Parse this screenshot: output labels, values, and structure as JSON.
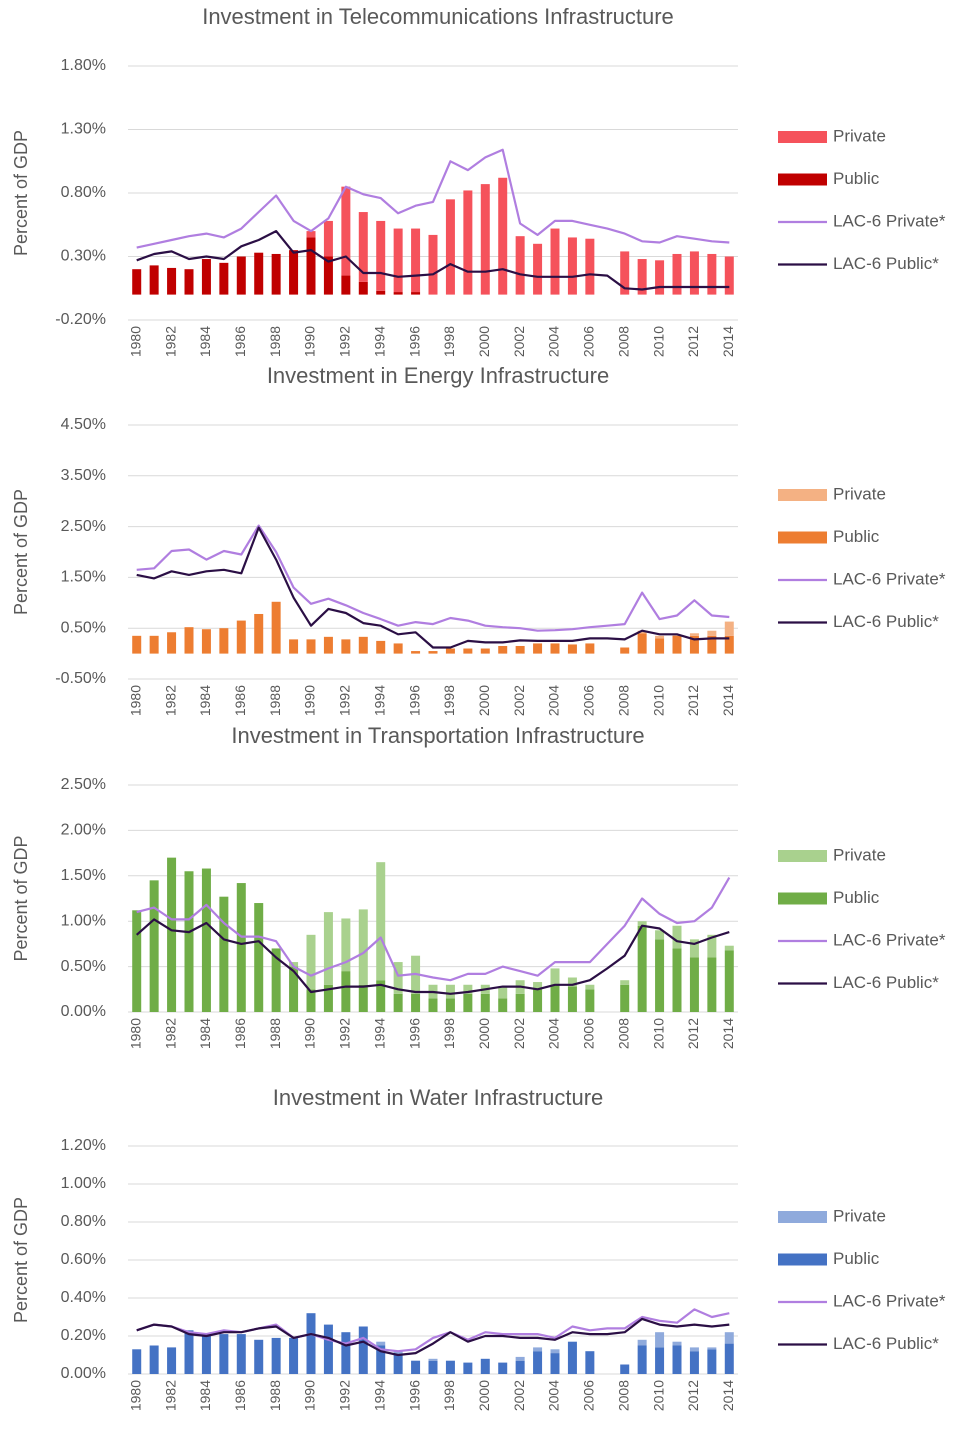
{
  "chart_data": [
    {
      "type": "bar",
      "title": "Investment in Telecommunications Infrastructure",
      "y_label": "Percent of GDP",
      "categories": [
        "1980",
        null,
        "1982",
        null,
        "1984",
        null,
        "1986",
        null,
        "1988",
        null,
        "1990",
        null,
        "1992",
        null,
        "1994",
        null,
        "1996",
        null,
        "1998",
        null,
        "2000",
        null,
        "2002",
        null,
        "2004",
        null,
        "2006",
        null,
        "2008",
        null,
        "2010",
        null,
        "2012",
        null,
        "2014"
      ],
      "ylim": [
        -0.2,
        1.8
      ],
      "yticks": [
        {
          "value": -0.2,
          "label": "-0.20%"
        },
        {
          "value": 0.3,
          "label": "0.30%"
        },
        {
          "value": 0.8,
          "label": "0.80%"
        },
        {
          "value": 1.3,
          "label": "1.30%"
        },
        {
          "value": 1.8,
          "label": "1.80%"
        }
      ],
      "grid": true,
      "series": [
        {
          "name": "Private",
          "type": "bar",
          "color": "#f5525b",
          "values": [
            0,
            0,
            0,
            0,
            0,
            0,
            0,
            0,
            0,
            0,
            0.05,
            0.28,
            0.7,
            0.55,
            0.55,
            0.5,
            0.5,
            0.47,
            0.75,
            0.82,
            0.87,
            0.92,
            0.46,
            0.4,
            0.52,
            0.45,
            0.44,
            0,
            0.34,
            0.28,
            0.27,
            0.32,
            0.34,
            0.32,
            0.3
          ]
        },
        {
          "name": "Public",
          "type": "bar",
          "color": "#c00000",
          "values": [
            0.2,
            0.23,
            0.21,
            0.2,
            0.28,
            0.25,
            0.3,
            0.33,
            0.32,
            0.35,
            0.45,
            0.3,
            0.15,
            0.1,
            0.03,
            0.02,
            0.02,
            0,
            0,
            0,
            0,
            0,
            0,
            0,
            0,
            0,
            0,
            0,
            0,
            0,
            0,
            0,
            0,
            0,
            0
          ]
        },
        {
          "name": "LAC-6 Private*",
          "type": "line",
          "color": "#b07ee0",
          "values": [
            0.37,
            0.4,
            0.43,
            0.46,
            0.48,
            0.45,
            0.52,
            0.65,
            0.78,
            0.58,
            0.5,
            0.6,
            0.85,
            0.79,
            0.76,
            0.64,
            0.7,
            0.73,
            1.05,
            0.98,
            1.08,
            1.14,
            0.56,
            0.47,
            0.58,
            0.58,
            0.55,
            0.52,
            0.48,
            0.42,
            0.41,
            0.46,
            0.44,
            0.42,
            0.41
          ]
        },
        {
          "name": "LAC-6 Public*",
          "type": "line",
          "color": "#2b0f45",
          "values": [
            0.27,
            0.32,
            0.34,
            0.28,
            0.3,
            0.28,
            0.38,
            0.43,
            0.5,
            0.33,
            0.35,
            0.26,
            0.3,
            0.17,
            0.17,
            0.14,
            0.15,
            0.16,
            0.24,
            0.18,
            0.18,
            0.2,
            0.16,
            0.14,
            0.14,
            0.14,
            0.16,
            0.15,
            0.05,
            0.04,
            0.06,
            0.06,
            0.06,
            0.06,
            0.06
          ]
        }
      ]
    },
    {
      "type": "bar",
      "title": "Investment in Energy Infrastructure",
      "y_label": "Percent of GDP",
      "categories": [
        "1980",
        null,
        "1982",
        null,
        "1984",
        null,
        "1986",
        null,
        "1988",
        null,
        "1990",
        null,
        "1992",
        null,
        "1994",
        null,
        "1996",
        null,
        "1998",
        null,
        "2000",
        null,
        "2002",
        null,
        "2004",
        null,
        "2006",
        null,
        "2008",
        null,
        "2010",
        null,
        "2012",
        null,
        "2014"
      ],
      "ylim": [
        -0.5,
        4.5
      ],
      "yticks": [
        {
          "value": -0.5,
          "label": "-0.50%"
        },
        {
          "value": 0.5,
          "label": "0.50%"
        },
        {
          "value": 1.5,
          "label": "1.50%"
        },
        {
          "value": 2.5,
          "label": "2.50%"
        },
        {
          "value": 3.5,
          "label": "3.50%"
        },
        {
          "value": 4.5,
          "label": "4.50%"
        }
      ],
      "grid": true,
      "series": [
        {
          "name": "Private",
          "type": "bar",
          "color": "#f4b183",
          "values": [
            0,
            0,
            0,
            0,
            0,
            0,
            0,
            0,
            0,
            0,
            0,
            0,
            0,
            0,
            0,
            0,
            0,
            0,
            0,
            0,
            0,
            0,
            0,
            0,
            0,
            0,
            0,
            0,
            0,
            0.05,
            0.05,
            0.02,
            0.05,
            0.1,
            0.28
          ]
        },
        {
          "name": "Public",
          "type": "bar",
          "color": "#ed7d31",
          "values": [
            0.35,
            0.35,
            0.42,
            0.52,
            0.48,
            0.5,
            0.65,
            0.78,
            1.02,
            0.28,
            0.28,
            0.33,
            0.28,
            0.33,
            0.25,
            0.2,
            0.05,
            0.05,
            0.1,
            0.1,
            0.1,
            0.15,
            0.15,
            0.2,
            0.2,
            0.18,
            0.2,
            0,
            0.12,
            0.4,
            0.3,
            0.35,
            0.35,
            0.35,
            0.35
          ]
        },
        {
          "name": "LAC-6 Private*",
          "type": "line",
          "color": "#b07ee0",
          "values": [
            1.65,
            1.68,
            2.02,
            2.05,
            1.85,
            2.02,
            1.95,
            2.52,
            2.0,
            1.3,
            0.98,
            1.08,
            0.95,
            0.8,
            0.68,
            0.55,
            0.62,
            0.58,
            0.7,
            0.65,
            0.55,
            0.52,
            0.5,
            0.45,
            0.46,
            0.48,
            0.52,
            0.55,
            0.58,
            1.2,
            0.68,
            0.75,
            1.05,
            0.75,
            0.72
          ]
        },
        {
          "name": "LAC-6 Public*",
          "type": "line",
          "color": "#2b0f45",
          "values": [
            1.55,
            1.48,
            1.62,
            1.55,
            1.62,
            1.65,
            1.58,
            2.48,
            1.85,
            1.1,
            0.55,
            0.88,
            0.8,
            0.6,
            0.55,
            0.38,
            0.42,
            0.12,
            0.12,
            0.25,
            0.22,
            0.22,
            0.26,
            0.25,
            0.25,
            0.25,
            0.3,
            0.3,
            0.28,
            0.45,
            0.38,
            0.38,
            0.28,
            0.3,
            0.3
          ]
        }
      ]
    },
    {
      "type": "bar",
      "title": "Investment in Transportation Infrastructure",
      "y_label": "Percent of GDP",
      "categories": [
        "1980",
        null,
        "1982",
        null,
        "1984",
        null,
        "1986",
        null,
        "1988",
        null,
        "1990",
        null,
        "1992",
        null,
        "1994",
        null,
        "1996",
        null,
        "1998",
        null,
        "2000",
        null,
        "2002",
        null,
        "2004",
        null,
        "2006",
        null,
        "2008",
        null,
        "2010",
        null,
        "2012",
        null,
        "2014"
      ],
      "ylim": [
        0,
        2.5
      ],
      "yticks": [
        {
          "value": 0,
          "label": "0.00%"
        },
        {
          "value": 0.5,
          "label": "0.50%"
        },
        {
          "value": 1,
          "label": "1.00%"
        },
        {
          "value": 1.5,
          "label": "1.50%"
        },
        {
          "value": 2,
          "label": "2.00%"
        },
        {
          "value": 2.5,
          "label": "2.50%"
        }
      ],
      "grid": true,
      "series": [
        {
          "name": "Private",
          "type": "bar",
          "color": "#a9d18e",
          "values": [
            0,
            0,
            0,
            0,
            0,
            0,
            0,
            0,
            0,
            0.05,
            0.6,
            0.8,
            0.58,
            0.83,
            1.3,
            0.35,
            0.42,
            0.15,
            0.15,
            0.1,
            0.1,
            0.12,
            0.15,
            0.08,
            0.18,
            0.1,
            0.05,
            0,
            0.05,
            0.05,
            0.1,
            0.25,
            0.2,
            0.25,
            0.05
          ]
        },
        {
          "name": "Public",
          "type": "bar",
          "color": "#70ad47",
          "values": [
            1.12,
            1.45,
            1.7,
            1.55,
            1.58,
            1.27,
            1.42,
            1.2,
            0.7,
            0.5,
            0.25,
            0.3,
            0.45,
            0.3,
            0.35,
            0.2,
            0.2,
            0.15,
            0.15,
            0.2,
            0.2,
            0.15,
            0.2,
            0.25,
            0.3,
            0.28,
            0.25,
            0,
            0.3,
            0.95,
            0.8,
            0.7,
            0.6,
            0.6,
            0.68
          ]
        },
        {
          "name": "LAC-6 Private*",
          "type": "line",
          "color": "#b07ee0",
          "values": [
            1.1,
            1.15,
            1.02,
            1.02,
            1.18,
            0.98,
            0.83,
            0.83,
            0.78,
            0.5,
            0.4,
            0.48,
            0.55,
            0.65,
            0.82,
            0.4,
            0.42,
            0.38,
            0.35,
            0.42,
            0.42,
            0.5,
            0.45,
            0.4,
            0.55,
            0.55,
            0.55,
            0.75,
            0.95,
            1.25,
            1.08,
            0.98,
            1.0,
            1.15,
            1.48
          ]
        },
        {
          "name": "LAC-6 Public*",
          "type": "line",
          "color": "#2b0f45",
          "values": [
            0.85,
            1.02,
            0.9,
            0.88,
            0.98,
            0.8,
            0.75,
            0.78,
            0.6,
            0.45,
            0.22,
            0.25,
            0.28,
            0.28,
            0.3,
            0.25,
            0.22,
            0.22,
            0.2,
            0.22,
            0.25,
            0.28,
            0.28,
            0.25,
            0.3,
            0.3,
            0.35,
            0.48,
            0.62,
            0.95,
            0.92,
            0.78,
            0.75,
            0.82,
            0.88
          ]
        }
      ]
    },
    {
      "type": "bar",
      "title": "Investment in Water Infrastructure",
      "y_label": "Percent of GDP",
      "categories": [
        "1980",
        null,
        "1982",
        null,
        "1984",
        null,
        "1986",
        null,
        "1988",
        null,
        "1990",
        null,
        "1992",
        null,
        "1994",
        null,
        "1996",
        null,
        "1998",
        null,
        "2000",
        null,
        "2002",
        null,
        "2004",
        null,
        "2006",
        null,
        "2008",
        null,
        "2010",
        null,
        "2012",
        null,
        "2014"
      ],
      "ylim": [
        0,
        1.2
      ],
      "yticks": [
        {
          "value": 0,
          "label": "0.00%"
        },
        {
          "value": 0.2,
          "label": "0.20%"
        },
        {
          "value": 0.4,
          "label": "0.40%"
        },
        {
          "value": 0.6,
          "label": "0.60%"
        },
        {
          "value": 0.8,
          "label": "0.80%"
        },
        {
          "value": 1,
          "label": "1.00%"
        },
        {
          "value": 1.2,
          "label": "1.20%"
        }
      ],
      "grid": true,
      "series": [
        {
          "name": "Private",
          "type": "bar",
          "color": "#8faadc",
          "values": [
            0,
            0,
            0,
            0,
            0,
            0,
            0,
            0,
            0,
            0,
            0,
            0,
            0,
            0,
            0.02,
            0.02,
            0,
            0.01,
            0,
            0,
            0,
            0,
            0.02,
            0.02,
            0.02,
            0,
            0,
            0,
            0,
            0.03,
            0.08,
            0.02,
            0.02,
            0.01,
            0.06
          ]
        },
        {
          "name": "Public",
          "type": "bar",
          "color": "#4472c4",
          "values": [
            0.13,
            0.15,
            0.14,
            0.23,
            0.21,
            0.21,
            0.21,
            0.18,
            0.19,
            0.19,
            0.32,
            0.26,
            0.22,
            0.25,
            0.15,
            0.1,
            0.07,
            0.07,
            0.07,
            0.06,
            0.08,
            0.06,
            0.07,
            0.12,
            0.11,
            0.17,
            0.12,
            0,
            0.05,
            0.15,
            0.14,
            0.15,
            0.12,
            0.13,
            0.16
          ]
        },
        {
          "name": "LAC-6 Private*",
          "type": "line",
          "color": "#b07ee0",
          "values": [
            0.23,
            0.26,
            0.25,
            0.22,
            0.21,
            0.23,
            0.22,
            0.24,
            0.26,
            0.19,
            0.21,
            0.18,
            0.16,
            0.19,
            0.13,
            0.12,
            0.13,
            0.19,
            0.22,
            0.18,
            0.22,
            0.21,
            0.21,
            0.21,
            0.19,
            0.25,
            0.23,
            0.24,
            0.24,
            0.3,
            0.28,
            0.27,
            0.34,
            0.3,
            0.32
          ]
        },
        {
          "name": "LAC-6 Public*",
          "type": "line",
          "color": "#2b0f45",
          "values": [
            0.23,
            0.26,
            0.25,
            0.21,
            0.2,
            0.22,
            0.22,
            0.24,
            0.25,
            0.19,
            0.21,
            0.19,
            0.15,
            0.17,
            0.12,
            0.1,
            0.11,
            0.16,
            0.22,
            0.17,
            0.2,
            0.2,
            0.19,
            0.19,
            0.18,
            0.22,
            0.21,
            0.21,
            0.22,
            0.29,
            0.26,
            0.25,
            0.26,
            0.25,
            0.26
          ]
        }
      ]
    }
  ]
}
